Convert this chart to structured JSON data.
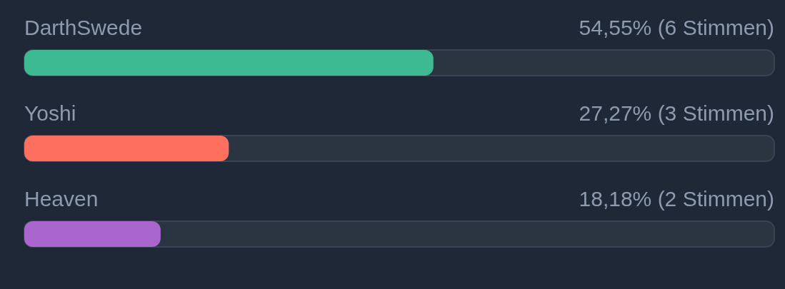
{
  "chart_data": {
    "type": "bar",
    "orientation": "horizontal",
    "categories": [
      "DarthSwede",
      "Yoshi",
      "Heaven"
    ],
    "values": [
      54.55,
      27.27,
      18.18
    ],
    "colors": [
      "#3dba91",
      "#fe705e",
      "#aa65cf"
    ],
    "value_labels": [
      "54,55% (6 Stimmen)",
      "27,27% (3 Stimmen)",
      "18,18% (2 Stimmen)"
    ],
    "xlim": [
      0,
      100
    ],
    "tick_labels": "y"
  }
}
